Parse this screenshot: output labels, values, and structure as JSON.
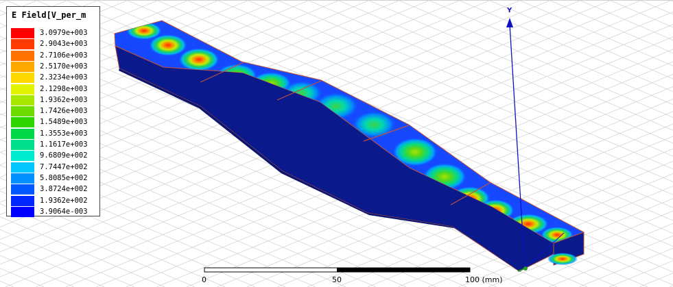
{
  "legend": {
    "title": "E Field[V_per_m",
    "entries": [
      {
        "value": "3.0979e+003",
        "color": "#ff0000"
      },
      {
        "value": "2.9043e+003",
        "color": "#ff3a00"
      },
      {
        "value": "2.7106e+003",
        "color": "#ff7200"
      },
      {
        "value": "2.5170e+003",
        "color": "#ffa800"
      },
      {
        "value": "2.3234e+003",
        "color": "#ffd800"
      },
      {
        "value": "2.1298e+003",
        "color": "#e4f400"
      },
      {
        "value": "1.9362e+003",
        "color": "#a8e800"
      },
      {
        "value": "1.7426e+003",
        "color": "#6edc00"
      },
      {
        "value": "1.5489e+003",
        "color": "#30d400"
      },
      {
        "value": "1.3553e+003",
        "color": "#00d848"
      },
      {
        "value": "1.1617e+003",
        "color": "#00e08c"
      },
      {
        "value": "9.6809e+002",
        "color": "#00ecd0"
      },
      {
        "value": "7.7447e+002",
        "color": "#00c8ff"
      },
      {
        "value": "5.8085e+002",
        "color": "#0090ff"
      },
      {
        "value": "3.8724e+002",
        "color": "#0058ff"
      },
      {
        "value": "1.9362e+002",
        "color": "#0028ff"
      },
      {
        "value": "3.9064e-003",
        "color": "#0000ff"
      }
    ]
  },
  "scale_bar": {
    "labels": [
      "0",
      "50",
      "100 (mm)"
    ]
  },
  "axis": {
    "y_label": "Y"
  },
  "colors": {
    "body_blue": "#0a1a8c",
    "edge": "#c0503a",
    "axis_blue": "#1010c0",
    "grid": "#d4d4d4"
  }
}
